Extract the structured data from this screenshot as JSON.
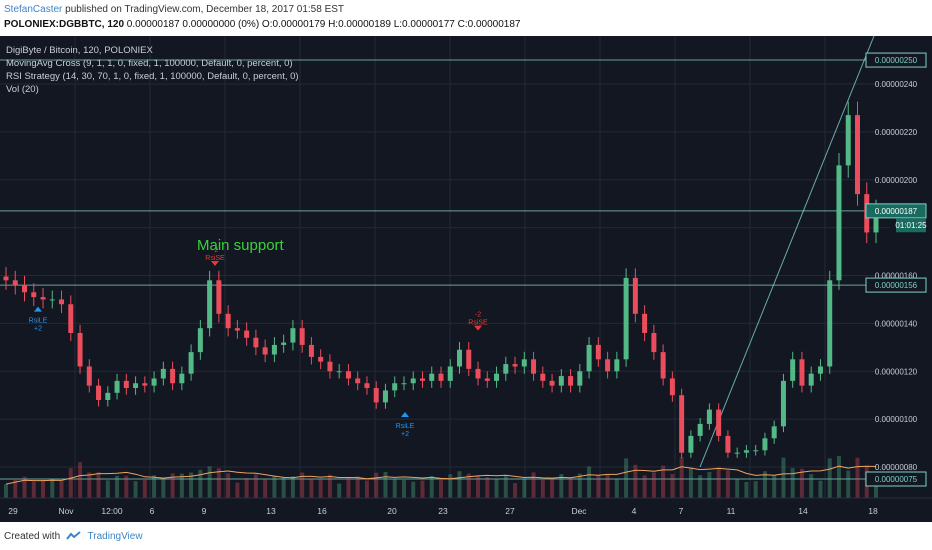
{
  "header": {
    "author": "StefanCaster",
    "published_text": " published on TradingView.com, December 18, 2017 01:58 EST",
    "symbol": "POLONIEX:DGBBTC, 120",
    "ohlc_text": " 0.00000187 0.00000000 (0%) O:0.00000179 H:0.00000189 L:0.00000177 C:0.00000187"
  },
  "legend": {
    "title": "DigiByte / Bitcoin, 120, POLONIEX",
    "lines": [
      "MovingAvg Cross (9, 1, 1, 0, fixed, 1, 100000, Default, 0, percent, 0)",
      "RSI Strategy (14, 30, 70, 1, 0, fixed, 1, 100000, Default, 0, percent, 0)",
      "Vol (20)"
    ]
  },
  "annotations": {
    "main_support": "Main support"
  },
  "chart_data": {
    "type": "candlestick",
    "price_axis_labels": [
      "0.00000250",
      "0.00000240",
      "0.00000220",
      "0.00000200",
      "0.00000187",
      "0.00000160",
      "0.00000156",
      "0.00000140",
      "0.00000120",
      "0.00000100",
      "0.00000080",
      "0.00000075"
    ],
    "price_values": [
      2.5e-06,
      2.4e-06,
      2.2e-06,
      2e-06,
      1.87e-06,
      1.6e-06,
      1.56e-06,
      1.4e-06,
      1.2e-06,
      1e-06,
      8e-07,
      7.5e-07
    ],
    "current_price_label": "0.00000187",
    "countdown_label": "01:01:25",
    "time_axis_labels": [
      "29",
      "Nov",
      "12:00",
      "6",
      "9",
      "13",
      "16",
      "20",
      "23",
      "27",
      "Dec",
      "4",
      "7",
      "11",
      "14",
      "18"
    ],
    "horizontal_levels": [
      "0.00000250",
      "0.00000187",
      "0.00000156",
      "0.00000075"
    ],
    "close_series": [
      1.58e-06,
      1.56e-06,
      1.53e-06,
      1.51e-06,
      1.5e-06,
      1.5e-06,
      1.48e-06,
      1.36e-06,
      1.22e-06,
      1.14e-06,
      1.08e-06,
      1.11e-06,
      1.16e-06,
      1.13e-06,
      1.15e-06,
      1.14e-06,
      1.17e-06,
      1.21e-06,
      1.15e-06,
      1.19e-06,
      1.28e-06,
      1.38e-06,
      1.58e-06,
      1.44e-06,
      1.38e-06,
      1.37e-06,
      1.34e-06,
      1.3e-06,
      1.27e-06,
      1.31e-06,
      1.32e-06,
      1.38e-06,
      1.31e-06,
      1.26e-06,
      1.24e-06,
      1.2e-06,
      1.2e-06,
      1.17e-06,
      1.15e-06,
      1.13e-06,
      1.07e-06,
      1.12e-06,
      1.15e-06,
      1.15e-06,
      1.17e-06,
      1.16e-06,
      1.19e-06,
      1.16e-06,
      1.22e-06,
      1.29e-06,
      1.21e-06,
      1.17e-06,
      1.16e-06,
      1.19e-06,
      1.23e-06,
      1.22e-06,
      1.25e-06,
      1.19e-06,
      1.16e-06,
      1.14e-06,
      1.18e-06,
      1.14e-06,
      1.2e-06,
      1.31e-06,
      1.25e-06,
      1.2e-06,
      1.25e-06,
      1.59e-06,
      1.44e-06,
      1.36e-06,
      1.28e-06,
      1.17e-06,
      1.1e-06,
      8.6e-07,
      9.3e-07,
      9.8e-07,
      1.04e-06,
      9.3e-07,
      8.6e-07,
      8.6e-07,
      8.7e-07,
      8.7e-07,
      9.2e-07,
      9.7e-07,
      1.16e-06,
      1.25e-06,
      1.14e-06,
      1.19e-06,
      1.22e-06,
      1.58e-06,
      2.06e-06,
      2.27e-06,
      1.94e-06,
      1.78e-06,
      1.87e-06
    ],
    "buy_signals": [
      {
        "label": "RsiLE",
        "sub": "+2"
      },
      {
        "label": "RsiLE",
        "sub": "+2"
      }
    ],
    "sell_signals": [
      {
        "label": "RsiSE",
        "sub": "-2"
      },
      {
        "label": "RsiSE",
        "sub": "-2"
      }
    ]
  },
  "footer": {
    "created_with": "Created with",
    "brand": "TradingView"
  },
  "colors": {
    "background": "#131722",
    "up": "#53b987",
    "down": "#eb4d5c",
    "axis_label": "#c9cdd6",
    "level_line": "#7fd1c8",
    "support_text": "#39d23a",
    "volume_ma": "#f0a35e"
  }
}
